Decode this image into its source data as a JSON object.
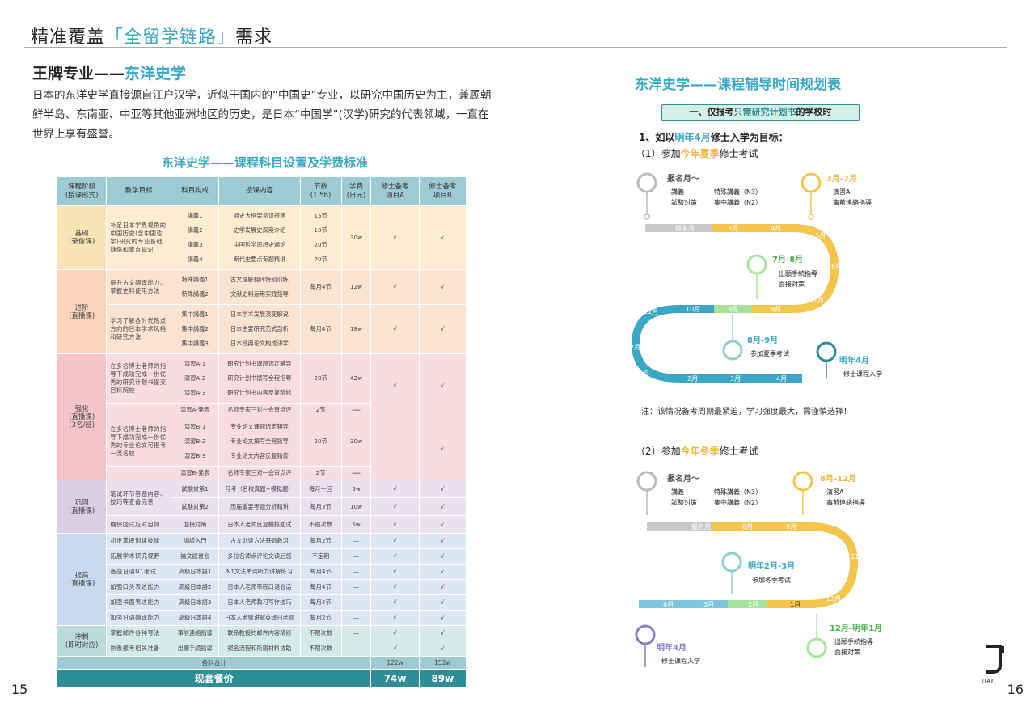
{
  "header": {
    "pre": "精准覆盖",
    "hl": "「全留学链路」",
    "post": "需求"
  },
  "left": {
    "heading_pre": "王牌专业——",
    "heading_hl": "东洋史学",
    "intro": "日本的东洋史学直接源自江户汉学，近似于国内的“中国史”专业，以研究中国历史为主，兼顾朝鲜半岛、东南亚、中亚等其他亚洲地区的历史，是日本“中国学”(汉学)研究的代表领域，一直在世界上享有盛誉。",
    "table_title": "东洋史学——课程科目设置及学费标准",
    "cols": [
      "课程阶段\n(授课形式)",
      "教学目标",
      "科目构成",
      "授课内容",
      "节数\n(1.5h)",
      "学费\n(日元)",
      "修士备考\n项目A",
      "修士备考\n项目B"
    ],
    "stages": {
      "s1": "基础\n(录像课)",
      "s2": "进阶\n(直播课)",
      "s3": "强化\n(直播课)\n(3名/班)",
      "s4": "巩固\n(直播课)",
      "s5": "提高\n(直播课)",
      "s6": "冲刺\n(即时对应)"
    },
    "g1": {
      "goal": "补足日本学界视角的中国历史(含中国哲学)研究的专业基础脉络和重点知识",
      "subjects": [
        "講義1",
        "講義2",
        "講義3",
        "講義4"
      ],
      "contents": [
        "通史大框架意识搭建",
        "史学发展史深度介绍",
        "中国哲学思想史通论",
        "断代史要点专题精讲"
      ],
      "counts": [
        "15节",
        "10节",
        "20节",
        "70节"
      ],
      "fee": "30w",
      "a": "√",
      "b": "√"
    },
    "g2": [
      {
        "goal": "提升古文翻译能力、掌握史料使用方法",
        "subjects": [
          "特殊講義1",
          "特殊講義2"
        ],
        "contents": [
          "古文理解翻译特别训练",
          "文献史料运用实践指导"
        ],
        "count": "每月4节",
        "fee": "12w",
        "a": "√",
        "b": "√"
      },
      {
        "goal": "学习了解各时代热点方向的日本学术风格和研究方法",
        "subjects": [
          "集中講義1",
          "集中講義2",
          "集中講義3"
        ],
        "contents": [
          "日本学术发展演变解说",
          "日本主要研究范式剖析",
          "日本经典论文构成讲学"
        ],
        "count": "每月4节",
        "fee": "18w",
        "a": "√",
        "b": "√"
      }
    ],
    "g3": {
      "goalA": "在多名博士老师的指导下成功完成一份优秀的研究计划书提交目标院校",
      "subjectsA": [
        "演習A-1",
        "演習A-2",
        "演習A-3"
      ],
      "contentsA": [
        "研究计划书课题选定辅导",
        "研究计划书撰写全程指导",
        "研究计划书内容反复精修"
      ],
      "countA": "28节",
      "feeA": "42w",
      "presA": {
        "subject": "演習A-発表",
        "content": "名师专家三对一会审点评",
        "count": "2节",
        "fee": "—"
      },
      "goalB": "在多名博士老师的指导下成功完成一份优秀的专业论文可报考一流名校",
      "subjectsB": [
        "演習B-1",
        "演習B-2",
        "演習B-3"
      ],
      "contentsB": [
        "专业论文课题选定辅导",
        "专业论文撰写全程指导",
        "专业论文内容反复精修"
      ],
      "countB": "20节",
      "feeB": "30w",
      "presB": {
        "subject": "演習B-発表",
        "content": "名师专家三对一会审点评",
        "count": "2节",
        "fee": "—"
      },
      "a": "√",
      "b": "√"
    },
    "g4": [
      {
        "goal": "笔试环节答题内容、技巧等查备完善",
        "subject": "試験対策1",
        "content": "月考（名校真题+模拟题）",
        "count": "每月一回",
        "fee": "5w",
        "a": "√",
        "b": "√"
      },
      {
        "goal": "",
        "subject": "試験対策2",
        "content": "历届重要考题分析精讲",
        "count": "每月3节",
        "fee": "10w",
        "a": "√",
        "b": "√"
      },
      {
        "goal": "确保面试应对自如",
        "subject": "面接対策",
        "content": "日本人老师反复模拟面试",
        "count": "不限次数",
        "fee": "5w",
        "a": "√",
        "b": "√"
      }
    ],
    "g5": [
      {
        "goal": "初步掌握训读技能",
        "subject": "訓読入門",
        "content": "古文训读方法基础教习",
        "count": "每月2节",
        "fee": "—",
        "a": "√",
        "b": "√"
      },
      {
        "goal": "拓展学术研究视野",
        "subject": "論文読書会",
        "content": "多位名师点评论文读后感",
        "count": "不定期",
        "fee": "—",
        "a": "√",
        "b": "√"
      },
      {
        "goal": "备战日语N1考试",
        "subject": "高級日本語1",
        "content": "N1文法单词听力讲解练习",
        "count": "每月4节",
        "fee": "—",
        "a": "√",
        "b": "√"
      },
      {
        "goal": "加强口头表达能力",
        "subject": "高級日本語2",
        "content": "日本人老师带练口语会话",
        "count": "每月4节",
        "fee": "—",
        "a": "√",
        "b": "√"
      },
      {
        "goal": "加强书面表达能力",
        "subject": "高級日本語3",
        "content": "日本人老师教习写作技巧",
        "count": "每月4节",
        "fee": "—",
        "a": "√",
        "b": "√"
      },
      {
        "goal": "加强日语翻译能力",
        "subject": "高級日本語4",
        "content": "日本人老师讲解英译日老题",
        "count": "每月2节",
        "fee": "—",
        "a": "√",
        "b": "√"
      }
    ],
    "g6": [
      {
        "goal": "掌握邮件各种写法",
        "subject": "事前連絡指導",
        "content": "联系教授的邮件内容精修",
        "count": "不限次数",
        "fee": "—",
        "a": "√",
        "b": "√"
      },
      {
        "goal": "熟悉报考相关准备",
        "subject": "出願手続指導",
        "content": "报名流程和所需材料协助",
        "count": "不限次数",
        "fee": "—",
        "a": "√",
        "b": "√"
      }
    ],
    "sum": {
      "label": "各科合计",
      "a": "122w",
      "b": "152w"
    },
    "pkg": {
      "label": "现套餐价",
      "a": "74w",
      "b": "89w"
    },
    "page": "15"
  },
  "right": {
    "title": "东洋史学——课程辅导时间规划表",
    "badge_pre": "一、仅报考",
    "badge_hl": "只需研究计划书",
    "badge_post": "的学校时",
    "goal_pre": "1、如以",
    "goal_hl": "明年4月",
    "goal_post": "修士入学为目标：",
    "s1_pre": "（1）参加",
    "s1_hl": "今年夏季",
    "s1_post": "修士考试",
    "s2_pre": "（2）参加",
    "s2_hl": "今年冬季",
    "s2_post": "修士考试",
    "note": "注：该情况备考周期最紧迫，学习强度最大，需谨慎选择！",
    "page": "16",
    "logo_text": "JIAYI",
    "r1": {
      "reg_title": "报名月～",
      "reg_items": [
        "講義",
        "特殊講義（N3）",
        "試験対策",
        "集中講義（N2）"
      ],
      "p2_title": "3月-7月",
      "p2_items": [
        "演習A",
        "事前連絡指導"
      ],
      "p3_title": "7月-8月",
      "p3_items": [
        "出願手続指導",
        "面接対策"
      ],
      "p4_title": "8月-9月",
      "p4_items": [
        "参加夏季考试"
      ],
      "p5_title": "明年4月",
      "p5_items": [
        "修士课程入学"
      ],
      "months_top": [
        "报名月",
        "3月",
        "4月",
        "5月"
      ],
      "months_right": [
        "6月",
        "7月"
      ],
      "months_mid": [
        "11月",
        "10月",
        "9月",
        "8月"
      ],
      "months_left": [
        "12月",
        "1月"
      ],
      "months_bot": [
        "2月",
        "3月",
        "4月"
      ]
    },
    "r2": {
      "reg_title": "报名月～",
      "reg_items": [
        "講義",
        "特殊講義（N3）",
        "試験対策",
        "集中講義（N2）"
      ],
      "p2_title": "8月-12月",
      "p2_items": [
        "演習A",
        "事前連絡指導"
      ],
      "p3_title": "明年2月-3月",
      "p3_items": [
        "参加冬季考试"
      ],
      "p4_title": "12月-明年1月",
      "p4_items": [
        "出願手続指導",
        "面接対策"
      ],
      "p5_title": "明年4月",
      "p5_items": [
        "修士课程入学"
      ],
      "months_top": [
        "报名月",
        "8月",
        "9月",
        "10月"
      ],
      "months_right": [
        "11月",
        "12月"
      ],
      "months_bot": [
        "4月",
        "3月",
        "2月",
        "1月"
      ]
    }
  }
}
